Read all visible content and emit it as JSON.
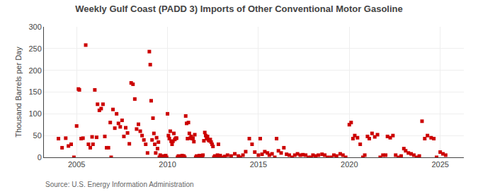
{
  "chart_data": {
    "type": "scatter",
    "title": "Weekly Gulf Coast (PADD 3) Imports of Other Conventional Motor Gasoline",
    "ylabel": "Thousand Barrels per Day",
    "annotations": [
      "Source: U.S. Energy Information Administration"
    ],
    "color": "#cc0000",
    "marker": "square",
    "grid": true,
    "xlim": [
      2003.2,
      2026.3
    ],
    "xticks": [
      2005,
      2010,
      2015,
      2020,
      2025
    ],
    "ylim": [
      0,
      300
    ],
    "yticks": [
      0,
      50,
      100,
      150,
      200,
      250,
      300
    ],
    "x": [
      2004.0,
      2004.2,
      2004.4,
      2004.55,
      2004.7,
      2004.85,
      2005.0,
      2005.1,
      2005.15,
      2005.25,
      2005.35,
      2005.5,
      2005.65,
      2005.75,
      2005.85,
      2005.9,
      2006.0,
      2006.1,
      2006.15,
      2006.25,
      2006.35,
      2006.45,
      2006.55,
      2006.65,
      2006.75,
      2006.85,
      2006.9,
      2007.0,
      2007.1,
      2007.2,
      2007.3,
      2007.4,
      2007.5,
      2007.6,
      2007.7,
      2007.8,
      2007.9,
      2008.0,
      2008.1,
      2008.2,
      2008.3,
      2008.4,
      2008.5,
      2008.6,
      2008.7,
      2008.8,
      2008.9,
      2009.0,
      2009.05,
      2009.1,
      2009.15,
      2009.2,
      2009.25,
      2009.3,
      2009.35,
      2009.4,
      2009.45,
      2009.5,
      2009.55,
      2009.6,
      2009.65,
      2009.7,
      2009.75,
      2009.8,
      2009.85,
      2009.9,
      2009.95,
      2010.0,
      2010.05,
      2010.1,
      2010.15,
      2010.2,
      2010.25,
      2010.3,
      2010.35,
      2010.4,
      2010.45,
      2010.5,
      2010.55,
      2010.6,
      2010.65,
      2010.7,
      2010.75,
      2010.8,
      2010.85,
      2010.9,
      2010.95,
      2011.0,
      2011.05,
      2011.1,
      2011.15,
      2011.2,
      2011.25,
      2011.3,
      2011.35,
      2011.4,
      2011.45,
      2011.5,
      2011.55,
      2011.6,
      2011.65,
      2011.7,
      2011.75,
      2011.8,
      2011.85,
      2011.9,
      2011.95,
      2012.0,
      2012.05,
      2012.1,
      2012.15,
      2012.2,
      2012.25,
      2012.3,
      2012.35,
      2012.4,
      2012.45,
      2012.5,
      2012.55,
      2012.6,
      2012.65,
      2012.7,
      2012.75,
      2012.8,
      2012.85,
      2012.9,
      2013.0,
      2013.15,
      2013.3,
      2013.5,
      2013.7,
      2013.9,
      2014.0,
      2014.15,
      2014.3,
      2014.5,
      2014.65,
      2014.8,
      2015.0,
      2015.1,
      2015.2,
      2015.35,
      2015.5,
      2015.6,
      2015.75,
      2015.9,
      2016.0,
      2016.1,
      2016.25,
      2016.4,
      2016.55,
      2016.7,
      2016.85,
      2017.0,
      2017.15,
      2017.3,
      2017.45,
      2017.6,
      2017.75,
      2017.9,
      2018.0,
      2018.15,
      2018.3,
      2018.5,
      2018.65,
      2018.8,
      2019.0,
      2019.15,
      2019.3,
      2019.5,
      2019.65,
      2019.8,
      2020.0,
      2020.1,
      2020.2,
      2020.3,
      2020.45,
      2020.6,
      2020.75,
      2020.85,
      2021.0,
      2021.1,
      2021.25,
      2021.4,
      2021.55,
      2021.7,
      2021.85,
      2022.0,
      2022.1,
      2022.25,
      2022.4,
      2022.55,
      2022.7,
      2022.85,
      2023.0,
      2023.1,
      2023.25,
      2023.4,
      2023.55,
      2023.7,
      2023.85,
      2024.0,
      2024.15,
      2024.3,
      2024.5,
      2024.65,
      2024.8,
      2025.0,
      2025.15,
      2025.3
    ],
    "values": [
      43,
      22,
      44,
      26,
      30,
      0,
      72,
      157,
      155,
      43,
      44,
      258,
      30,
      22,
      47,
      30,
      155,
      46,
      122,
      108,
      112,
      122,
      48,
      22,
      22,
      80,
      0,
      110,
      67,
      100,
      78,
      70,
      85,
      48,
      68,
      56,
      31,
      171,
      168,
      134,
      65,
      76,
      60,
      50,
      40,
      30,
      10,
      243,
      213,
      130,
      40,
      90,
      55,
      30,
      10,
      45,
      20,
      35,
      0,
      5,
      0,
      0,
      2,
      3,
      0,
      4,
      0,
      100,
      50,
      43,
      60,
      37,
      30,
      37,
      55,
      41,
      44,
      44,
      0,
      3,
      0,
      2,
      0,
      4,
      0,
      3,
      0,
      95,
      78,
      43,
      80,
      55,
      44,
      48,
      43,
      44,
      36,
      52,
      0,
      3,
      0,
      2,
      4,
      0,
      3,
      0,
      5,
      38,
      57,
      50,
      43,
      48,
      40,
      38,
      41,
      35,
      30,
      25,
      0,
      3,
      0,
      2,
      5,
      30,
      0,
      4,
      0,
      2,
      5,
      3,
      8,
      3,
      0,
      5,
      13,
      43,
      30,
      12,
      5,
      43,
      7,
      13,
      10,
      5,
      8,
      0,
      43,
      15,
      10,
      22,
      7,
      5,
      0,
      5,
      8,
      5,
      6,
      5,
      0,
      0,
      5,
      3,
      5,
      7,
      5,
      0,
      0,
      5,
      3,
      8,
      5,
      0,
      75,
      80,
      43,
      50,
      45,
      30,
      0,
      5,
      48,
      43,
      55,
      47,
      52,
      0,
      5,
      5,
      48,
      45,
      50,
      5,
      0,
      3,
      20,
      15,
      10,
      8,
      5,
      0,
      3,
      83,
      43,
      50,
      45,
      43,
      0,
      12,
      8,
      5
    ]
  }
}
